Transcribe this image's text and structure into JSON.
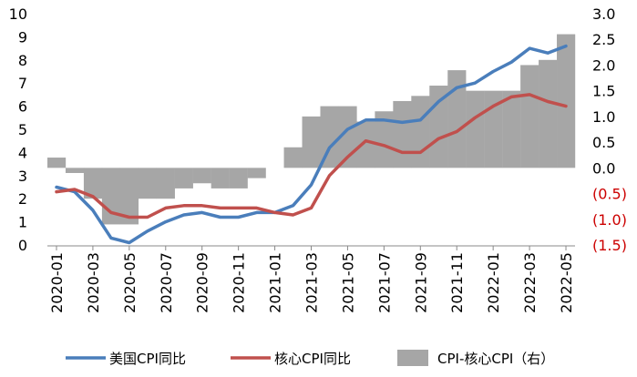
{
  "chart_data": {
    "type": "line+bar",
    "title": "",
    "categories": [
      "2020-01",
      "2020-02",
      "2020-03",
      "2020-04",
      "2020-05",
      "2020-06",
      "2020-07",
      "2020-08",
      "2020-09",
      "2020-10",
      "2020-11",
      "2020-12",
      "2021-01",
      "2021-02",
      "2021-03",
      "2021-04",
      "2021-05",
      "2021-06",
      "2021-07",
      "2021-08",
      "2021-09",
      "2021-10",
      "2021-11",
      "2021-12",
      "2022-01",
      "2022-02",
      "2022-03",
      "2022-04",
      "2022-05"
    ],
    "x_tick_labels": [
      "2020-01",
      "2020-03",
      "2020-05",
      "2020-07",
      "2020-09",
      "2020-11",
      "2021-01",
      "2021-03",
      "2021-05",
      "2021-07",
      "2021-09",
      "2021-11",
      "2022-01",
      "2022-03",
      "2022-05"
    ],
    "left_axis": {
      "ylim": [
        0,
        10
      ],
      "ticks": [
        "0",
        "1",
        "2",
        "3",
        "4",
        "5",
        "6",
        "7",
        "8",
        "9",
        "10"
      ]
    },
    "right_axis": {
      "ylim": [
        -1.5,
        3.0
      ],
      "ticks": [
        {
          "value": 3.0,
          "label": "3.0",
          "color": "#000000"
        },
        {
          "value": 2.5,
          "label": "2.5",
          "color": "#000000"
        },
        {
          "value": 2.0,
          "label": "2.0",
          "color": "#000000"
        },
        {
          "value": 1.5,
          "label": "1.5",
          "color": "#000000"
        },
        {
          "value": 1.0,
          "label": "1.0",
          "color": "#000000"
        },
        {
          "value": 0.5,
          "label": "0.5",
          "color": "#000000"
        },
        {
          "value": 0.0,
          "label": "0.0",
          "color": "#000000"
        },
        {
          "value": -0.5,
          "label": "(0.5)",
          "color": "#cc0000"
        },
        {
          "value": -1.0,
          "label": "(1.0)",
          "color": "#cc0000"
        },
        {
          "value": -1.5,
          "label": "(1.5)",
          "color": "#cc0000"
        }
      ]
    },
    "series": [
      {
        "name": "美国CPI同比",
        "type": "line",
        "axis": "left",
        "color": "#4a7ebb",
        "values": [
          2.5,
          2.3,
          1.5,
          0.3,
          0.1,
          0.6,
          1.0,
          1.3,
          1.4,
          1.2,
          1.2,
          1.4,
          1.4,
          1.7,
          2.6,
          4.2,
          5.0,
          5.4,
          5.4,
          5.3,
          5.4,
          6.2,
          6.8,
          7.0,
          7.5,
          7.9,
          8.5,
          8.3,
          8.6
        ]
      },
      {
        "name": "核心CPI同比",
        "type": "line",
        "axis": "left",
        "color": "#c0504d",
        "values": [
          2.3,
          2.4,
          2.1,
          1.4,
          1.2,
          1.2,
          1.6,
          1.7,
          1.7,
          1.6,
          1.6,
          1.6,
          1.4,
          1.3,
          1.6,
          3.0,
          3.8,
          4.5,
          4.3,
          4.0,
          4.0,
          4.6,
          4.9,
          5.5,
          6.0,
          6.4,
          6.5,
          6.2,
          6.0
        ]
      },
      {
        "name": "CPI-核心CPI（右）",
        "type": "bar",
        "axis": "right",
        "color": "#a6a6a6",
        "values": [
          0.2,
          -0.1,
          -0.6,
          -1.1,
          -1.1,
          -0.6,
          -0.6,
          -0.4,
          -0.3,
          -0.4,
          -0.4,
          -0.2,
          0.0,
          0.4,
          1.0,
          1.2,
          1.2,
          0.9,
          1.1,
          1.3,
          1.4,
          1.6,
          1.9,
          1.5,
          1.5,
          1.5,
          2.0,
          2.1,
          2.6
        ]
      }
    ],
    "legend": {
      "position": "bottom",
      "items": [
        {
          "label": "美国CPI同比",
          "kind": "line",
          "color": "#4a7ebb"
        },
        {
          "label": "核心CPI同比",
          "kind": "line",
          "color": "#c0504d"
        },
        {
          "label": "CPI-核心CPI（右）",
          "kind": "box",
          "color": "#a6a6a6"
        }
      ]
    }
  }
}
